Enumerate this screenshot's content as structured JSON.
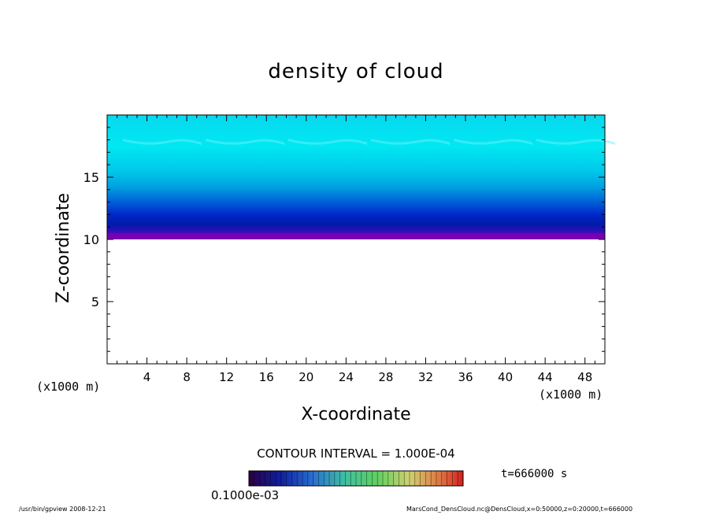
{
  "chart_data": {
    "type": "heatmap",
    "title": "density of cloud",
    "xlabel": "X-coordinate",
    "ylabel": "Z-coordinate",
    "x_unit": "(x1000 m)",
    "xlim": [
      0,
      50
    ],
    "ylim": [
      0,
      20
    ],
    "x_ticks": [
      4,
      8,
      12,
      16,
      20,
      24,
      28,
      32,
      36,
      40,
      44,
      48
    ],
    "y_ticks": [
      5,
      10,
      15
    ],
    "cloud_layer": {
      "z_bottom": 10,
      "z_top": 20
    },
    "contour_interval": "CONTOUR INTERVAL = 1.000E-04",
    "colorbar_labels": "0.1000e-03",
    "time_label": "t=666000 s",
    "colors": {
      "top": "#00e5ee",
      "mid": "#00a8e0",
      "deep": "#0018c8",
      "base": "#7a00b0"
    }
  },
  "footer": {
    "left": "/usr/bin/gpview   2008-12-21",
    "right": "MarsCond_DensCloud.nc@DensCloud,x=0:50000,z=0:20000,t=666000"
  }
}
